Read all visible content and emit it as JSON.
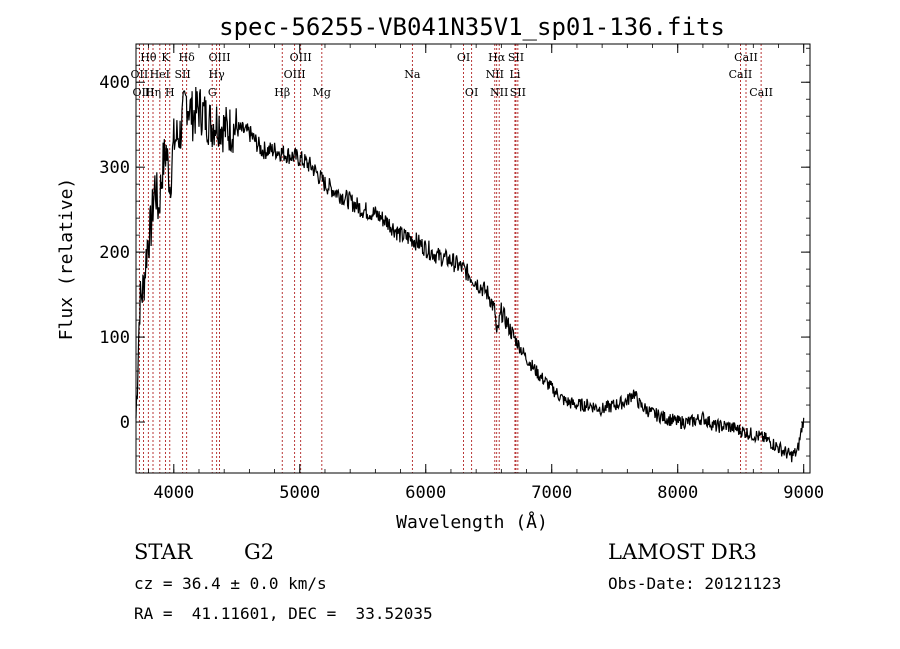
{
  "chart_data": {
    "type": "line",
    "title": "spec-56255-VB041N35V1_sp01-136.fits",
    "xlabel": "Wavelength (Å)",
    "ylabel": "Flux (relative)",
    "xlim": [
      3700,
      9050
    ],
    "ylim": [
      -60,
      445
    ],
    "xticks": [
      4000,
      5000,
      6000,
      7000,
      8000,
      9000
    ],
    "xtick_labels": [
      "4000",
      "5000",
      "6000",
      "7000",
      "8000",
      "9000"
    ],
    "yticks": [
      0,
      100,
      200,
      300,
      400
    ],
    "ytick_labels": [
      "0",
      "100",
      "200",
      "300",
      "400"
    ],
    "series": [
      {
        "name": "flux",
        "color": "#000000",
        "x": [
          3700,
          3730,
          3760,
          3790,
          3820,
          3850,
          3880,
          3910,
          3940,
          3970,
          4000,
          4050,
          4100,
          4150,
          4200,
          4250,
          4300,
          4350,
          4400,
          4500,
          4600,
          4700,
          4800,
          4900,
          5000,
          5100,
          5200,
          5300,
          5400,
          5500,
          5600,
          5700,
          5800,
          5900,
          6000,
          6100,
          6200,
          6300,
          6400,
          6500,
          6550,
          6563,
          6600,
          6650,
          6700,
          6800,
          6900,
          7000,
          7100,
          7200,
          7300,
          7400,
          7500,
          7600,
          7650,
          7700,
          7800,
          7900,
          8000,
          8100,
          8200,
          8300,
          8400,
          8500,
          8600,
          8700,
          8800,
          8900,
          8950,
          9000
        ],
        "y": [
          5,
          140,
          160,
          210,
          230,
          280,
          250,
          300,
          320,
          280,
          330,
          340,
          380,
          360,
          370,
          360,
          350,
          355,
          345,
          345,
          340,
          320,
          320,
          315,
          310,
          300,
          280,
          270,
          260,
          250,
          245,
          235,
          220,
          215,
          205,
          195,
          190,
          180,
          165,
          150,
          130,
          100,
          130,
          115,
          100,
          75,
          55,
          40,
          25,
          20,
          20,
          15,
          20,
          25,
          35,
          20,
          10,
          5,
          0,
          0,
          5,
          -5,
          -5,
          -10,
          -15,
          -20,
          -30,
          -40,
          -35,
          5
        ]
      }
    ],
    "lines": [
      {
        "label": "Hθ",
        "x": 3798,
        "row": 0
      },
      {
        "label": "OII",
        "x": 3727,
        "row": 1
      },
      {
        "label": "OIII",
        "x": 3760,
        "row": 2
      },
      {
        "label": "K",
        "x": 3934,
        "row": 0
      },
      {
        "label": "HeI",
        "x": 3889,
        "row": 1
      },
      {
        "label": "Hη",
        "x": 3835,
        "row": 2
      },
      {
        "label": "SII",
        "x": 4070,
        "row": 1
      },
      {
        "label": "H",
        "x": 3968,
        "row": 2
      },
      {
        "label": "Hδ",
        "x": 4102,
        "row": 0
      },
      {
        "label": "OIII",
        "x": 4363,
        "row": 0
      },
      {
        "label": "Hγ",
        "x": 4340,
        "row": 1
      },
      {
        "label": "G",
        "x": 4305,
        "row": 2
      },
      {
        "label": "Hβ",
        "x": 4861,
        "row": 2
      },
      {
        "label": "OIII",
        "x": 4959,
        "row": 1
      },
      {
        "label": "OIII",
        "x": 5007,
        "row": 0
      },
      {
        "label": "Mg",
        "x": 5175,
        "row": 2
      },
      {
        "label": "Na",
        "x": 5894,
        "row": 1
      },
      {
        "label": "OI",
        "x": 6300,
        "row": 0
      },
      {
        "label": "OI",
        "x": 6364,
        "row": 2
      },
      {
        "label": "NII",
        "x": 6548,
        "row": 1
      },
      {
        "label": "NII",
        "x": 6583,
        "row": 2
      },
      {
        "label": "Hα",
        "x": 6563,
        "row": 0
      },
      {
        "label": "SII",
        "x": 6716,
        "row": 0
      },
      {
        "label": "Li",
        "x": 6708,
        "row": 1
      },
      {
        "label": "SII",
        "x": 6731,
        "row": 2
      },
      {
        "label": "CaII",
        "x": 8498,
        "row": 1
      },
      {
        "label": "CaII",
        "x": 8542,
        "row": 0
      },
      {
        "label": "CaII",
        "x": 8662,
        "row": 2
      }
    ],
    "line_color": "#b22222"
  },
  "info": {
    "class_label": "STAR",
    "subclass": "G2",
    "survey": "LAMOST DR3",
    "cz_text": "cz = 36.4 ± 0.0 km/s",
    "obs_date": "Obs-Date: 20121123",
    "coords": "RA =  41.11601, DEC =  33.52035"
  }
}
